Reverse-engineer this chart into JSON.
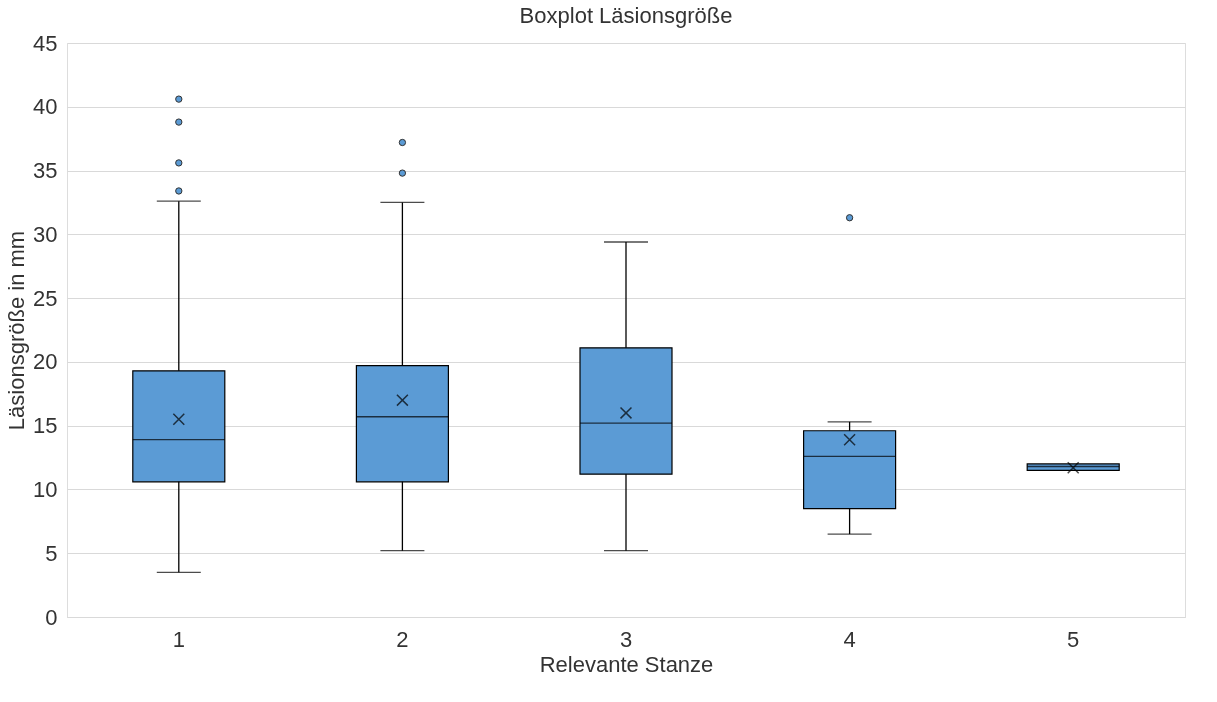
{
  "chart_data": {
    "type": "box",
    "title": "Boxplot Läsionsgröße",
    "xlabel": "Relevante Stanze",
    "ylabel": "Läsionsgröße in mm",
    "categories": [
      "1",
      "2",
      "3",
      "4",
      "5"
    ],
    "series": [
      {
        "color": "#5b9bd5",
        "boxes": [
          {
            "low": 3.5,
            "q1": 10.6,
            "median": 13.9,
            "q3": 19.3,
            "high": 32.6,
            "mean": 15.5,
            "outliers": [
              40.6,
              38.8,
              35.6,
              33.4
            ]
          },
          {
            "low": 5.2,
            "q1": 10.6,
            "median": 15.7,
            "q3": 19.7,
            "high": 32.5,
            "mean": 17.0,
            "outliers": [
              37.2,
              34.8
            ]
          },
          {
            "low": 5.2,
            "q1": 11.2,
            "median": 15.2,
            "q3": 21.1,
            "high": 29.4,
            "mean": 16.0
          },
          {
            "low": 6.5,
            "q1": 8.5,
            "median": 12.6,
            "q3": 14.6,
            "high": 15.3,
            "mean": 13.9,
            "outliers": [
              31.3
            ]
          },
          {
            "low": 11.5,
            "q1": 11.5,
            "median": 11.8,
            "q3": 12.0,
            "high": 12.0,
            "mean": 11.7
          }
        ]
      }
    ],
    "ylim": [
      0,
      45
    ],
    "yticks": [
      0,
      5,
      10,
      15,
      20,
      25,
      30,
      35,
      40,
      45
    ],
    "grid": "y"
  }
}
